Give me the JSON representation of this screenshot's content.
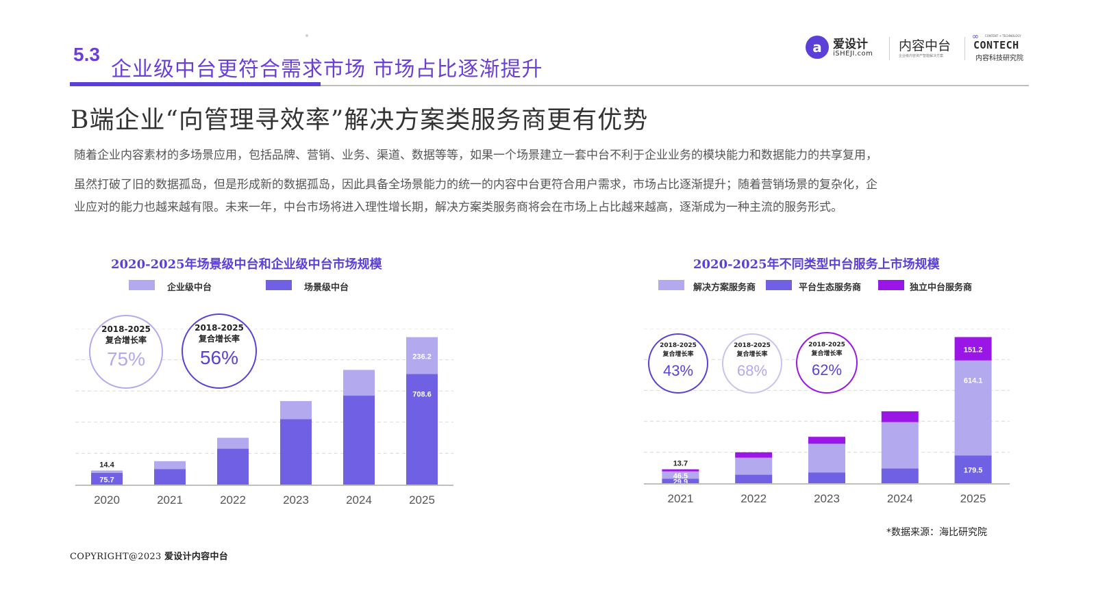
{
  "header": {
    "section_number": "5.3",
    "section_title": "企业级中台更符合需求市场 市场占比逐渐提升"
  },
  "logos": {
    "logo1_mark": "a",
    "logo1_cn": "爱设计",
    "logo1_en": "iSHEJI.com",
    "logo2_cn": "内容中台",
    "logo2_sub": "企业级内容资产智能解决方案",
    "logo3_tiny": "CONTENT + TECHNOLOGY",
    "logo3_en": "CONTECH",
    "logo3_cn": "内容科技研究院"
  },
  "subtitle": "B端企业“向管理寻效率”解决方案类服务商更有优势",
  "paragraph": {
    "line1": "随着企业内容素材的多场景应用，包括品牌、营销、业务、渠道、数据等等，如果一个场景建立一套中台不利于企业业务的模块能力和数据能力的共享复用，",
    "line2": "虽然打破了旧的数据孤岛，但是形成新的数据孤岛，因此具备全场景能力的统一的内容中台更符合用户需求，市场占比逐渐提升；随着营销场景的复杂化，企",
    "line3": "业应对的能力也越来越有限。未来一年，中台市场将进入理性增长期，解决方案类服务商将会在市场上占比越来越高，逐渐成为一种主流的服务形式。"
  },
  "colors": {
    "light_purple": "#b3a9ee",
    "mid_purple": "#7060e3",
    "bright_purple": "#9a16e6",
    "title_purple": "#5b3fd6"
  },
  "chart_data": [
    {
      "type": "bar",
      "stacked": true,
      "title": "2020-2025年场景级中台和企业级中台市场规模",
      "categories": [
        "2020",
        "2021",
        "2022",
        "2023",
        "2024",
        "2025"
      ],
      "series": [
        {
          "name": "场景级中台",
          "color": "#7060e3",
          "values": [
            75.7,
            100,
            230,
            420,
            570,
            708.6
          ],
          "labels": [
            "75.7",
            "",
            "",
            "",
            "",
            "708.6"
          ]
        },
        {
          "name": "企业级中台",
          "color": "#b3a9ee",
          "values": [
            14.4,
            50,
            70,
            115,
            165,
            236.2
          ],
          "labels": [
            "14.4",
            "",
            "",
            "",
            "",
            "236.2"
          ]
        }
      ],
      "legend": [
        {
          "name": "企业级中台",
          "color": "#b3a9ee"
        },
        {
          "name": "场景级中台",
          "color": "#7060e3"
        }
      ],
      "ylim": [
        0,
        1000
      ],
      "grid": true,
      "cagr": [
        {
          "label_line1": "2018-2025",
          "label_line2": "复合增长率",
          "value": "75%",
          "color": "#b3a9ee"
        },
        {
          "label_line1": "2018-2025",
          "label_line2": "复合增长率",
          "value": "56%",
          "color": "#5b3fd6"
        }
      ]
    },
    {
      "type": "bar",
      "stacked": true,
      "title": "2020-2025年不同类型中台服务上市场规模",
      "categories": [
        "2021",
        "2022",
        "2023",
        "2024",
        "2025"
      ],
      "series": [
        {
          "name": "平台生态服务商",
          "color": "#7060e3",
          "values": [
            29.9,
            55,
            70,
            95,
            179.5
          ],
          "labels": [
            "29.9",
            "",
            "",
            "",
            "179.5"
          ]
        },
        {
          "name": "解决方案服务商",
          "color": "#b3a9ee",
          "values": [
            46.5,
            110,
            185,
            300,
            614.1
          ],
          "labels": [
            "46.5",
            "",
            "",
            "",
            "614.1"
          ]
        },
        {
          "name": "独立中台服务商",
          "color": "#9a16e6",
          "values": [
            13.7,
            35,
            45,
            70,
            151.2
          ],
          "labels": [
            "13.7",
            "",
            "",
            "",
            "151.2"
          ]
        }
      ],
      "legend": [
        {
          "name": "解决方案服务商",
          "color": "#b3a9ee"
        },
        {
          "name": "平台生态服务商",
          "color": "#7060e3"
        },
        {
          "name": "独立中台服务商",
          "color": "#9a16e6"
        }
      ],
      "ylim": [
        0,
        1000
      ],
      "grid": true,
      "cagr": [
        {
          "label_line1": "2018-2025",
          "label_line2": "复合增长率",
          "value": "43%",
          "color": "#5b3fd6"
        },
        {
          "label_line1": "2018-2025",
          "label_line2": "复合增长率",
          "value": "68%",
          "color": "#b3a9ee"
        },
        {
          "label_line1": "2018-2025",
          "label_line2": "复合增长率",
          "value": "62%",
          "color": "#9a16e6"
        }
      ]
    }
  ],
  "footer": {
    "source": "*数据来源：海比研究院",
    "copyright_prefix": "COPYRIGHT@2023",
    "copyright_suffix": "爱设计内容中台"
  }
}
